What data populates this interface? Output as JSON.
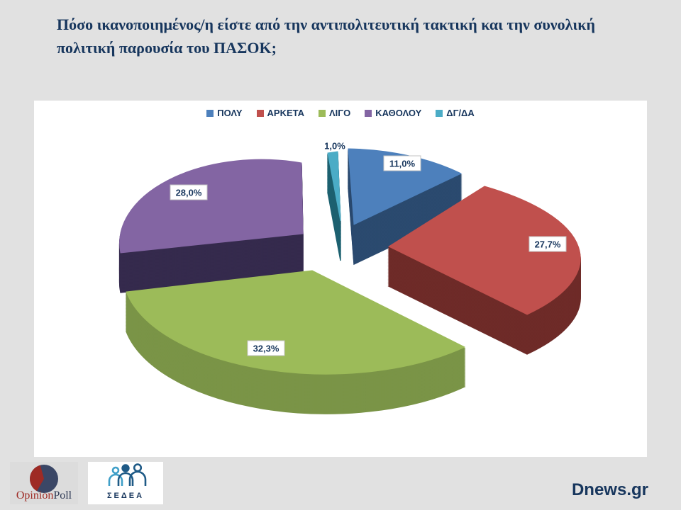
{
  "page": {
    "background": "#E1E1E1",
    "panel_background": "#FFFFFF"
  },
  "title": {
    "line1": "Πόσο ικανοποιημένος/η είστε από την αντιπολιτευτική τακτική και την συνολική",
    "line2": "πολιτική παρουσία του ΠΑΣΟΚ;",
    "color": "#17365D"
  },
  "chart_data": {
    "type": "pie",
    "style": "3d-exploded",
    "legend_position": "top",
    "clockwise": true,
    "start_angle_deg": 0,
    "categories": [
      "ΠΟΛΥ",
      "ΑΡΚΕΤΑ",
      "ΛΙΓΟ",
      "ΚΑΘΟΛΟΥ",
      "ΔΓ/ΔΑ"
    ],
    "values": [
      11.0,
      27.7,
      32.3,
      28.0,
      1.0
    ],
    "labels": [
      "11,0%",
      "27,7%",
      "32,3%",
      "28,0%",
      "1,0%"
    ],
    "colors": [
      "#4D80BC",
      "#C0504D",
      "#9CBB59",
      "#8365A3",
      "#4BACC6"
    ],
    "side_colors": [
      "#2B4A6F",
      "#6E2B28",
      "#7A9447",
      "#352A4D",
      "#1D6170"
    ],
    "label_text_color": "#17365D",
    "label_box_fill": "#FFFFFF",
    "label_box_border": "#C3C3C3"
  },
  "footer": {
    "opinionpoll": {
      "part1": "Opinion",
      "part2": "Poll",
      "part1_color": "#9E2B25",
      "part2_color": "#2F3A55",
      "pie_navy": "#3B4766",
      "pie_red": "#9E2B25"
    },
    "sedea": {
      "label": "ΣΕΔΕΑ",
      "color": "#17365D",
      "icon_blue": "#3F9FC8",
      "icon_navy": "#1E5A86"
    },
    "site": {
      "label": "Dnews.gr",
      "color": "#17365D"
    }
  }
}
